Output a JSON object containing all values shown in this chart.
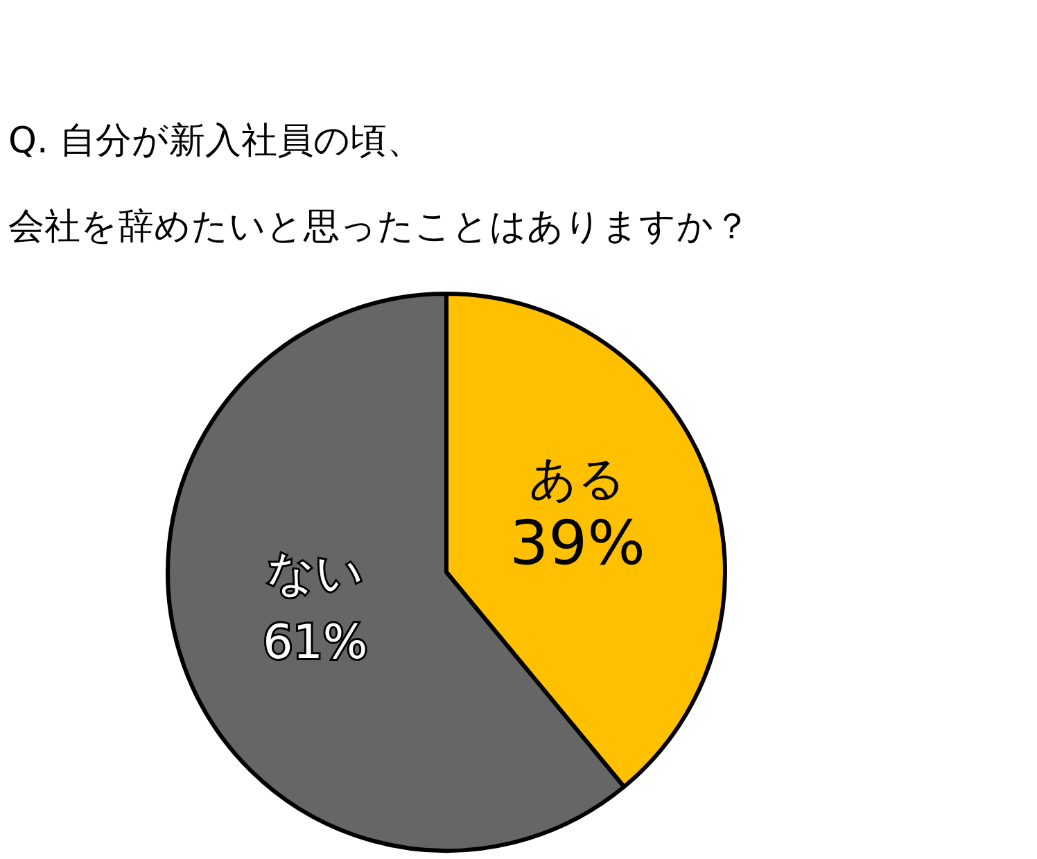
{
  "chart_data": {
    "type": "pie",
    "title": "Q. 自分が新入社員の頃、",
    "subtitle": "会社を辞めたいと思ったことはありますか？",
    "categories": [
      "ある",
      "ない"
    ],
    "values": [
      39,
      61
    ],
    "colors": [
      "#ffc000",
      "#666666"
    ],
    "value_labels": [
      "39%",
      "61%"
    ]
  }
}
